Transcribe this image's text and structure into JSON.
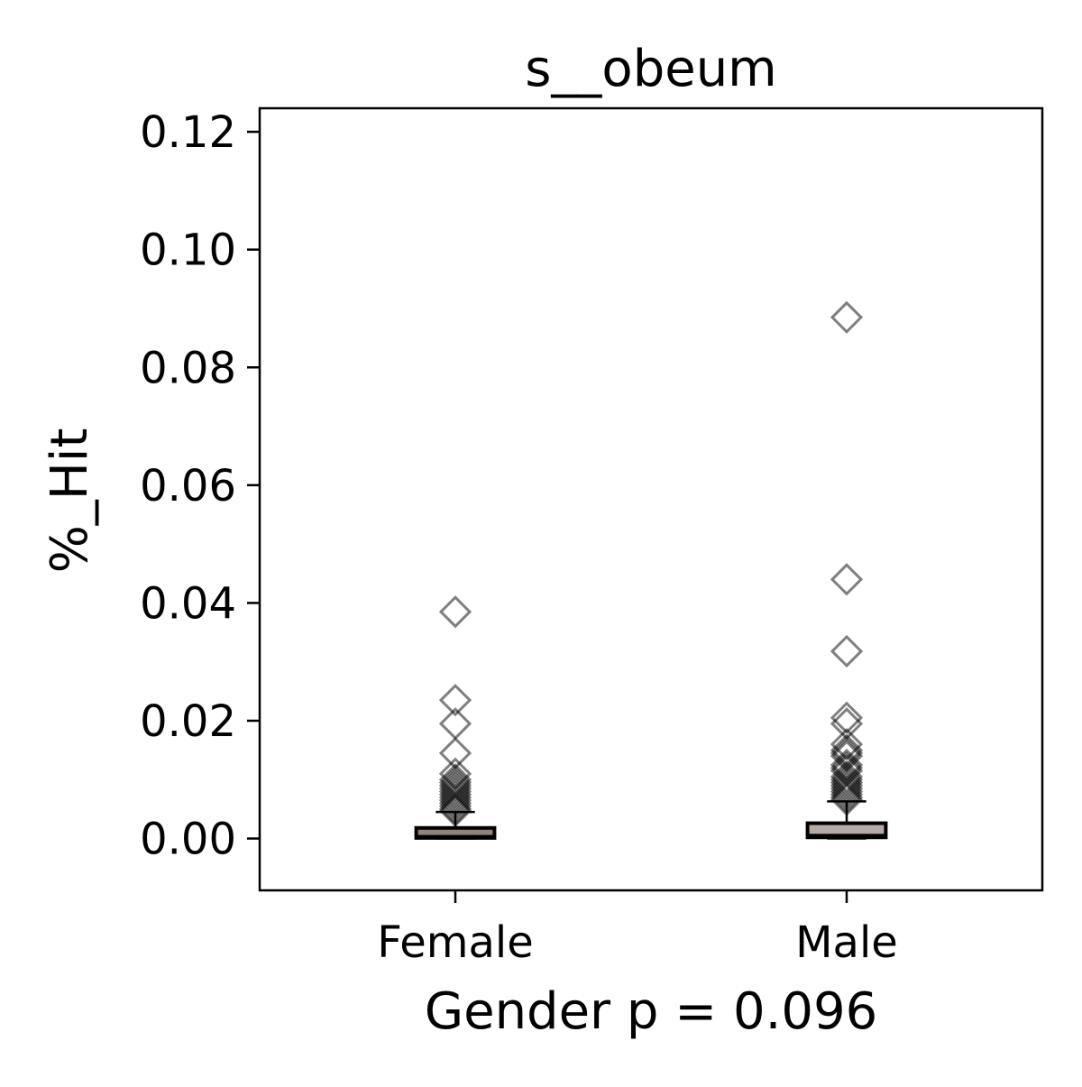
{
  "chart_data": {
    "type": "box",
    "title": "s__obeum",
    "xlabel": "Gender p = 0.096",
    "ylabel": "%_Hit",
    "categories": [
      "Female",
      "Male"
    ],
    "ylim": [
      -0.0088,
      0.124
    ],
    "yticks": [
      "0.00",
      "0.02",
      "0.04",
      "0.06",
      "0.08",
      "0.10",
      "0.12"
    ],
    "ytick_values": [
      0,
      0.02,
      0.04,
      0.06,
      0.08,
      0.1,
      0.12
    ],
    "grid": false,
    "box_face_colors": [
      "#8f837d",
      "#b5aaa5"
    ],
    "outlier_color": "#000000",
    "boxes": [
      {
        "category": "Female",
        "whisker_low": 0.0,
        "q1": 0.0001,
        "median": 0.0004,
        "q3": 0.0018,
        "whisker_high": 0.0045,
        "outliers": [
          0.0385,
          0.0235,
          0.0195,
          0.0145,
          0.011,
          0.01,
          0.0095,
          0.009,
          0.0085,
          0.008,
          0.0075,
          0.007,
          0.0065,
          0.006,
          0.0055,
          0.005,
          0.0047
        ]
      },
      {
        "category": "Male",
        "whisker_low": 0.0,
        "q1": 0.0002,
        "median": 0.0006,
        "q3": 0.0026,
        "whisker_high": 0.0063,
        "outliers": [
          0.0885,
          0.044,
          0.0318,
          0.0205,
          0.0195,
          0.016,
          0.015,
          0.0145,
          0.014,
          0.0125,
          0.012,
          0.0115,
          0.0105,
          0.01,
          0.0095,
          0.009,
          0.0085,
          0.008,
          0.0075,
          0.007,
          0.0066
        ]
      }
    ]
  }
}
